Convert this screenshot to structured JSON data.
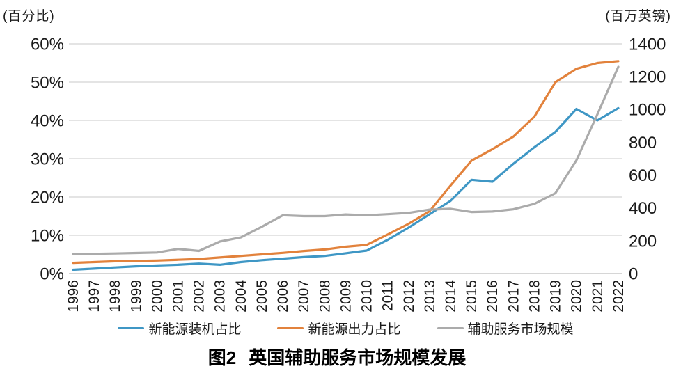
{
  "title": {
    "prefix": "图2",
    "text": "英国辅助服务市场规模发展"
  },
  "colors": {
    "blue": "#3f97c5",
    "orange": "#e2823c",
    "gray": "#ababab",
    "grid": "#dcdcdc",
    "axis_line": "#c8c8c8",
    "tick_text": "#1a1a1a"
  },
  "chart_data": {
    "type": "line",
    "x": [
      1996,
      1997,
      1998,
      1999,
      2000,
      2001,
      2002,
      2003,
      2004,
      2005,
      2006,
      2007,
      2008,
      2009,
      2010,
      2011,
      2012,
      2013,
      2014,
      2015,
      2016,
      2017,
      2018,
      2019,
      2020,
      2021,
      2022
    ],
    "series": [
      {
        "key": "installed-capacity-share",
        "name": "新能源装机占比",
        "axis": "left",
        "color_key": "blue",
        "values": [
          1.0,
          1.3,
          1.6,
          1.9,
          2.1,
          2.3,
          2.6,
          2.3,
          3.0,
          3.5,
          3.9,
          4.3,
          4.6,
          5.3,
          6.0,
          8.8,
          12.0,
          15.5,
          19.0,
          24.5,
          24.0,
          28.7,
          33.0,
          37.0,
          43.0,
          40.0,
          43.2
        ]
      },
      {
        "key": "output-share",
        "name": "新能源出力占比",
        "axis": "left",
        "color_key": "orange",
        "values": [
          2.8,
          3.0,
          3.2,
          3.3,
          3.4,
          3.6,
          3.8,
          4.2,
          4.6,
          5.0,
          5.4,
          5.9,
          6.3,
          7.0,
          7.5,
          10.2,
          13.0,
          16.3,
          23.0,
          29.5,
          32.5,
          35.8,
          41.0,
          50.0,
          53.5,
          55.0,
          55.5
        ]
      },
      {
        "key": "ancillary-market-size",
        "name": "辅助服务市场规模",
        "axis": "right",
        "color_key": "gray",
        "values": [
          120,
          120,
          122,
          125,
          128,
          150,
          138,
          195,
          220,
          285,
          355,
          350,
          350,
          360,
          355,
          362,
          370,
          390,
          395,
          375,
          378,
          392,
          425,
          490,
          690,
          970,
          1260
        ]
      }
    ],
    "left_axis": {
      "title": "(百分比)",
      "min": 0,
      "max": 60,
      "ticks": [
        "0%",
        "10%",
        "20%",
        "30%",
        "40%",
        "50%",
        "60%"
      ]
    },
    "right_axis": {
      "title": "(百万英镑)",
      "min": 0,
      "max": 1400,
      "ticks": [
        "0",
        "200",
        "400",
        "600",
        "800",
        "1000",
        "1200",
        "1400"
      ]
    },
    "grid": true,
    "legend_position": "bottom"
  }
}
